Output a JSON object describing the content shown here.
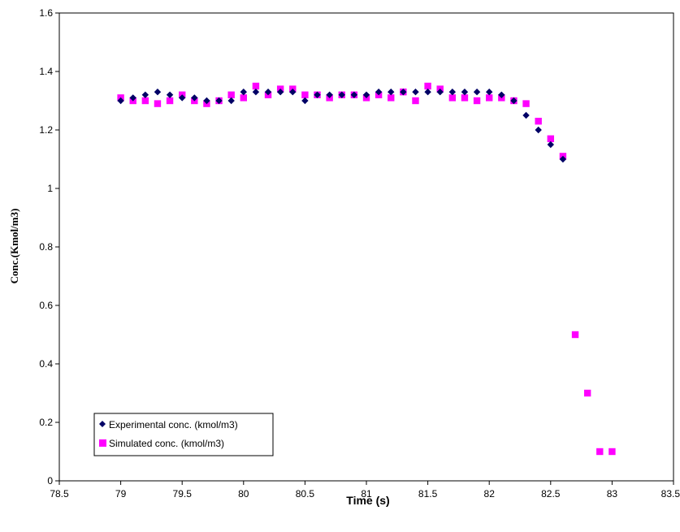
{
  "chart_data": {
    "type": "scatter",
    "title": "",
    "xlabel": "Time (s)",
    "ylabel": "Conc.(Kmol/m3)",
    "xlim": [
      78.5,
      83.5
    ],
    "ylim": [
      0,
      1.6
    ],
    "x_ticks": [
      "78.5",
      "79",
      "79.5",
      "80",
      "80.5",
      "81",
      "81.5",
      "82",
      "82.5",
      "83",
      "83.5"
    ],
    "y_ticks": [
      "0",
      "0.2",
      "0.4",
      "0.6",
      "0.8",
      "1",
      "1.2",
      "1.4",
      "1.6"
    ],
    "grid": false,
    "legend_position": "bottom-left",
    "series": [
      {
        "name": "Experimental conc. (kmol/m3)",
        "marker": "diamond",
        "color": "#000066",
        "points": [
          [
            79.0,
            1.3
          ],
          [
            79.1,
            1.31
          ],
          [
            79.2,
            1.32
          ],
          [
            79.3,
            1.33
          ],
          [
            79.4,
            1.32
          ],
          [
            79.5,
            1.31
          ],
          [
            79.6,
            1.31
          ],
          [
            79.7,
            1.3
          ],
          [
            79.8,
            1.3
          ],
          [
            79.9,
            1.3
          ],
          [
            80.0,
            1.33
          ],
          [
            80.1,
            1.33
          ],
          [
            80.2,
            1.33
          ],
          [
            80.3,
            1.33
          ],
          [
            80.4,
            1.33
          ],
          [
            80.5,
            1.3
          ],
          [
            80.6,
            1.32
          ],
          [
            80.7,
            1.32
          ],
          [
            80.8,
            1.32
          ],
          [
            80.9,
            1.32
          ],
          [
            81.0,
            1.32
          ],
          [
            81.1,
            1.33
          ],
          [
            81.2,
            1.33
          ],
          [
            81.3,
            1.33
          ],
          [
            81.4,
            1.33
          ],
          [
            81.5,
            1.33
          ],
          [
            81.6,
            1.33
          ],
          [
            81.7,
            1.33
          ],
          [
            81.8,
            1.33
          ],
          [
            81.9,
            1.33
          ],
          [
            82.0,
            1.33
          ],
          [
            82.1,
            1.32
          ],
          [
            82.2,
            1.3
          ],
          [
            82.3,
            1.25
          ],
          [
            82.4,
            1.2
          ],
          [
            82.5,
            1.15
          ],
          [
            82.6,
            1.1
          ]
        ]
      },
      {
        "name": "Simulated conc. (kmol/m3)",
        "marker": "square",
        "color": "#ff00ff",
        "points": [
          [
            79.0,
            1.31
          ],
          [
            79.1,
            1.3
          ],
          [
            79.2,
            1.3
          ],
          [
            79.3,
            1.29
          ],
          [
            79.4,
            1.3
          ],
          [
            79.5,
            1.32
          ],
          [
            79.6,
            1.3
          ],
          [
            79.7,
            1.29
          ],
          [
            79.8,
            1.3
          ],
          [
            79.9,
            1.32
          ],
          [
            80.0,
            1.31
          ],
          [
            80.1,
            1.35
          ],
          [
            80.2,
            1.32
          ],
          [
            80.3,
            1.34
          ],
          [
            80.4,
            1.34
          ],
          [
            80.5,
            1.32
          ],
          [
            80.6,
            1.32
          ],
          [
            80.7,
            1.31
          ],
          [
            80.8,
            1.32
          ],
          [
            80.9,
            1.32
          ],
          [
            81.0,
            1.31
          ],
          [
            81.1,
            1.32
          ],
          [
            81.2,
            1.31
          ],
          [
            81.3,
            1.33
          ],
          [
            81.4,
            1.3
          ],
          [
            81.5,
            1.35
          ],
          [
            81.6,
            1.34
          ],
          [
            81.7,
            1.31
          ],
          [
            81.8,
            1.31
          ],
          [
            81.9,
            1.3
          ],
          [
            82.0,
            1.31
          ],
          [
            82.1,
            1.31
          ],
          [
            82.2,
            1.3
          ],
          [
            82.3,
            1.29
          ],
          [
            82.4,
            1.23
          ],
          [
            82.5,
            1.17
          ],
          [
            82.6,
            1.11
          ],
          [
            82.7,
            0.5
          ],
          [
            82.8,
            0.3
          ],
          [
            82.9,
            0.1
          ],
          [
            83.0,
            0.1
          ]
        ]
      }
    ]
  }
}
